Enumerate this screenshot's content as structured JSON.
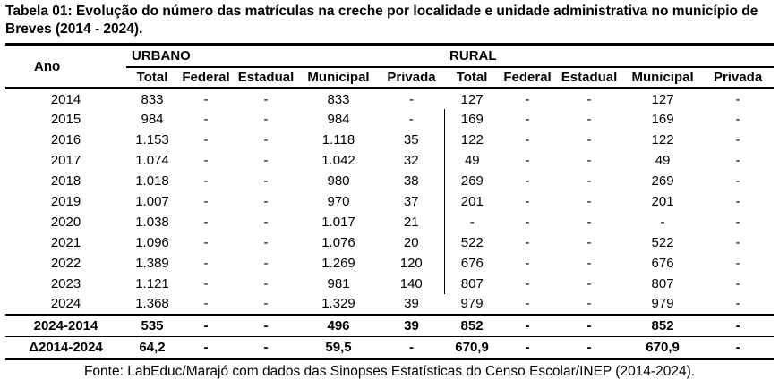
{
  "title": "Tabela 01: Evolução do número das matrículas na creche por localidade e unidade administrativa no município de Breves (2014 - 2024).",
  "table": {
    "row_header": "Ano",
    "groups": [
      {
        "label": "URBANO",
        "columns": [
          "Total",
          "Federal",
          "Estadual",
          "Municipal",
          "Privada"
        ]
      },
      {
        "label": "RURAL",
        "columns": [
          "Total",
          "Federal",
          "Estadual",
          "Municipal",
          "Privada"
        ]
      }
    ],
    "rows": [
      {
        "ano": "2014",
        "values": [
          "833",
          "-",
          "-",
          "833",
          "-",
          "127",
          "-",
          "-",
          "127",
          "-"
        ]
      },
      {
        "ano": "2015",
        "values": [
          "984",
          "-",
          "-",
          "984",
          "-",
          "169",
          "-",
          "-",
          "169",
          "-"
        ]
      },
      {
        "ano": "2016",
        "values": [
          "1.153",
          "-",
          "-",
          "1.118",
          "35",
          "122",
          "-",
          "-",
          "122",
          "-"
        ]
      },
      {
        "ano": "2017",
        "values": [
          "1.074",
          "-",
          "-",
          "1.042",
          "32",
          "49",
          "-",
          "-",
          "49",
          "-"
        ]
      },
      {
        "ano": "2018",
        "values": [
          "1.018",
          "-",
          "-",
          "980",
          "38",
          "269",
          "-",
          "-",
          "269",
          "-"
        ]
      },
      {
        "ano": "2019",
        "values": [
          "1.007",
          "-",
          "-",
          "970",
          "37",
          "201",
          "-",
          "-",
          "201",
          "-"
        ]
      },
      {
        "ano": "2020",
        "values": [
          "1.038",
          "-",
          "-",
          "1.017",
          "21",
          "-",
          "-",
          "-",
          "-",
          "-"
        ]
      },
      {
        "ano": "2021",
        "values": [
          "1.096",
          "-",
          "-",
          "1.076",
          "20",
          "522",
          "-",
          "-",
          "522",
          "-"
        ]
      },
      {
        "ano": "2022",
        "values": [
          "1.389",
          "-",
          "-",
          "1.269",
          "120",
          "676",
          "-",
          "-",
          "676",
          "-"
        ]
      },
      {
        "ano": "2023",
        "values": [
          "1.121",
          "-",
          "-",
          "981",
          "140",
          "807",
          "-",
          "-",
          "807",
          "-"
        ]
      },
      {
        "ano": "2024",
        "values": [
          "1.368",
          "-",
          "-",
          "1.329",
          "39",
          "979",
          "-",
          "-",
          "979",
          "-"
        ]
      }
    ],
    "summary_rows": [
      {
        "ano": "2024-2014",
        "values": [
          "535",
          "-",
          "-",
          "496",
          "39",
          "852",
          "-",
          "-",
          "852",
          "-"
        ]
      },
      {
        "ano": "Δ2014-2024",
        "values": [
          "64,2",
          "-",
          "-",
          "59,5",
          "-",
          "670,9",
          "-",
          "-",
          "670,9",
          "-"
        ]
      }
    ]
  },
  "footer": "Fonte: LabEduc/Marajó com dados das Sinopses Estatísticas do Censo Escolar/INEP (2014-2024)."
}
